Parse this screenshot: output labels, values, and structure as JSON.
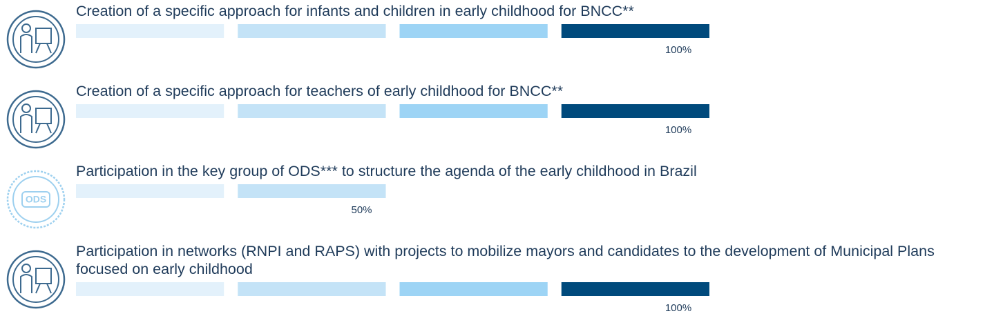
{
  "chart_data": {
    "type": "progress",
    "categories": [
      "Creation of a specific approach for infants and children in early childhood for BNCC**",
      "Creation of a specific approach for teachers of early childhood for BNCC**",
      "Participation in the key group of ODS*** to structure the agenda of the early childhood in Brazil",
      "Participation in networks (RNPI and RAPS) with projects to mobilize mayors and candidates to the development of Municipal Plans focused on early childhood"
    ],
    "values": [
      100,
      100,
      50,
      100
    ],
    "value_labels": [
      "100%",
      "100%",
      "50%",
      "100%"
    ],
    "xlim": [
      0,
      100
    ],
    "segment_colors": [
      "#e3f1fb",
      "#c4e3f7",
      "#9dd4f5",
      "#004a7c"
    ],
    "icon_colors": [
      "#3d6a8f",
      "#3d6a8f",
      "#9dd0ef",
      "#3d6a8f"
    ],
    "badge": "ODS"
  }
}
